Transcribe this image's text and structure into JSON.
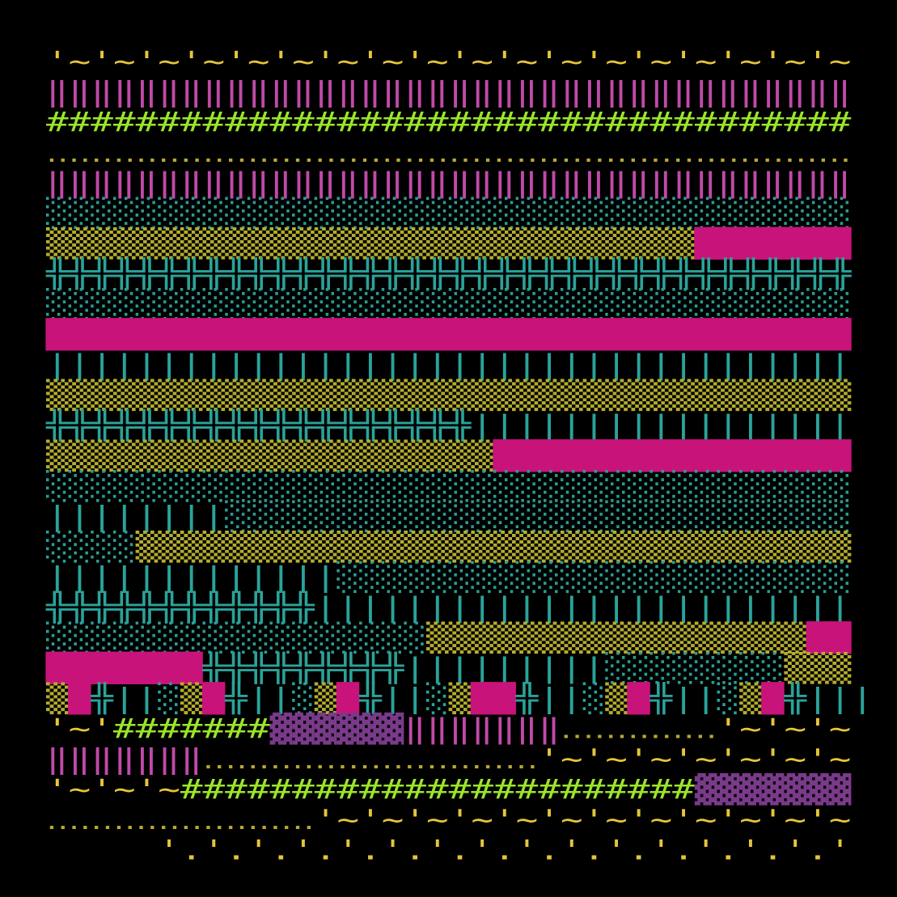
{
  "rows": [
    {
      "segments": [
        {
          "text": "'~'~'~'~'~'~'~'~'~'~'~'~'~'~'~'~'~'~",
          "color": "#e6c53a"
        }
      ]
    },
    {
      "segments": [
        {
          "text": "‖‖‖‖‖‖‖‖‖‖‖‖‖‖‖‖‖‖‖‖‖‖‖‖‖‖‖‖‖‖‖‖‖‖‖‖",
          "color": "#c04aa8"
        }
      ]
    },
    {
      "segments": [
        {
          "text": "####################################",
          "color": "#9be52a"
        }
      ]
    },
    {
      "segments": [
        {
          "text": "‥‥‥‥‥‥‥‥‥‥‥‥‥‥‥‥‥‥‥‥‥‥‥‥‥‥‥‥‥‥‥‥‥‥‥‥",
          "color": "#b8a830"
        }
      ]
    },
    {
      "segments": [
        {
          "text": "‖‖‖‖‖‖‖‖‖‖‖‖‖‖‖‖‖‖‖‖‖‖‖‖‖‖‖‖‖‖‖‖‖‖‖‖",
          "color": "#c04aa8"
        }
      ]
    },
    {
      "segments": [
        {
          "text": "░░░░░░░░░░░░░░░░░░░░░░░░░░░░░░░░░░░░",
          "color": "#2a9e94"
        }
      ]
    },
    {
      "segments": [
        {
          "text": "▒▒▒▒▒▒▒▒▒▒▒▒▒▒▒▒▒▒▒▒▒▒▒▒▒▒▒▒▒",
          "color": "#b5ad2e"
        },
        {
          "text": "███████",
          "color": "#c8137a"
        }
      ]
    },
    {
      "segments": [
        {
          "text": "╬╬╬╬╬╬╬╬╬╬╬╬╬╬╬╬╬╬╬╬╬╬╬╬╬╬╬╬╬╬╬╬╬╬╬╬",
          "color": "#2aa39a"
        }
      ]
    },
    {
      "segments": [
        {
          "text": "░░░░░░░░░░░░░░░░░░░░░░░░░░░░░░░░░░░░",
          "color": "#2a9e94"
        }
      ]
    },
    {
      "segments": [
        {
          "text": "████████████████████████████████████",
          "color": "#c8137a"
        }
      ]
    },
    {
      "segments": [
        {
          "text": "||||||||||||||||||||||||||||||||||||",
          "color": "#2aa39a"
        }
      ]
    },
    {
      "segments": [
        {
          "text": "▒▒▒▒▒▒▒▒▒▒▒▒▒▒▒▒▒▒▒▒▒▒▒▒▒▒▒▒▒▒▒▒▒▒▒▒",
          "color": "#b5ad2e"
        }
      ]
    },
    {
      "segments": [
        {
          "text": "╬╬╬╬╬╬╬╬╬╬╬╬╬╬╬╬╬╬╬",
          "color": "#2aa39a"
        },
        {
          "text": "|||||||||||||||||",
          "color": "#2aa39a"
        }
      ]
    },
    {
      "segments": [
        {
          "text": "▒▒▒▒▒▒▒▒▒▒▒▒▒▒▒▒▒▒▒▒",
          "color": "#b5ad2e"
        },
        {
          "text": "████████████████",
          "color": "#c8137a"
        }
      ]
    },
    {
      "segments": [
        {
          "text": "░░░░░░░░░░░░░░░░░░░░░░░░░░░░░░░░░░░░",
          "color": "#2a9e94"
        }
      ]
    },
    {
      "segments": [
        {
          "text": "||||||||",
          "color": "#2aa39a"
        },
        {
          "text": "░░░░░░░░░░░░░░░░░░░░░░░░░░░░",
          "color": "#2a9e94"
        }
      ]
    },
    {
      "segments": [
        {
          "text": "░░░░",
          "color": "#2a9e94"
        },
        {
          "text": "▒▒▒▒▒▒▒▒▒▒▒▒▒▒▒▒▒▒▒▒▒▒▒▒▒▒▒▒▒▒▒▒",
          "color": "#b5ad2e"
        }
      ]
    },
    {
      "segments": [
        {
          "text": "|||||||||||||",
          "color": "#2aa39a"
        },
        {
          "text": "░░░░░░░░░░░░░░░░░░░░░░░",
          "color": "#2a9e94"
        }
      ]
    },
    {
      "segments": [
        {
          "text": "╬╬╬╬╬╬╬╬╬╬╬╬",
          "color": "#2aa39a"
        },
        {
          "text": "||||||||||||||||||||||||",
          "color": "#2aa39a"
        }
      ]
    },
    {
      "segments": [
        {
          "text": "░░░░░░░░░░░░░░░░░",
          "color": "#2a9e94"
        },
        {
          "text": "▒▒▒▒▒▒▒▒▒▒▒▒▒▒▒▒▒",
          "color": "#b5ad2e"
        },
        {
          "text": "██",
          "color": "#c8137a"
        }
      ]
    },
    {
      "segments": [
        {
          "text": "███████",
          "color": "#c8137a"
        },
        {
          "text": "╬╬╬╬╬╬╬╬╬",
          "color": "#2aa39a"
        },
        {
          "text": "|||||||||",
          "color": "#2aa39a"
        },
        {
          "text": "░░░░░░░░",
          "color": "#2a9e94"
        },
        {
          "text": "▒▒▒",
          "color": "#b5ad2e"
        }
      ]
    },
    {
      "segments": [
        {
          "text": "▒",
          "color": "#b5ad2e"
        },
        {
          "text": "█",
          "color": "#c8137a"
        },
        {
          "text": "╬||░",
          "color": "#2aa39a"
        },
        {
          "text": "▒",
          "color": "#b5ad2e"
        },
        {
          "text": "█",
          "color": "#c8137a"
        },
        {
          "text": "╬||░",
          "color": "#2aa39a"
        },
        {
          "text": "▒",
          "color": "#b5ad2e"
        },
        {
          "text": "█",
          "color": "#c8137a"
        },
        {
          "text": "╬||░",
          "color": "#2aa39a"
        },
        {
          "text": "▒",
          "color": "#b5ad2e"
        },
        {
          "text": "██",
          "color": "#c8137a"
        },
        {
          "text": "╬||░",
          "color": "#2aa39a"
        },
        {
          "text": "▒",
          "color": "#b5ad2e"
        },
        {
          "text": "█",
          "color": "#c8137a"
        },
        {
          "text": "╬||░",
          "color": "#2aa39a"
        },
        {
          "text": "▒",
          "color": "#b5ad2e"
        },
        {
          "text": "█",
          "color": "#c8137a"
        },
        {
          "text": "╬|||",
          "color": "#2aa39a"
        }
      ]
    },
    {
      "segments": [
        {
          "text": "'~'",
          "color": "#e6c53a"
        },
        {
          "text": "#######",
          "color": "#9be52a"
        },
        {
          "text": "▓▓▓▓▓▓",
          "color": "#7a3a8a"
        },
        {
          "text": "‖‖‖‖‖‖‖",
          "color": "#c04aa8"
        },
        {
          "text": "‥‥‥‥‥‥‥",
          "color": "#b8a830"
        },
        {
          "text": "'~'~'~",
          "color": "#e6c53a"
        }
      ]
    },
    {
      "segments": [
        {
          "text": "‖‖‖‖‖‖‖",
          "color": "#c04aa8"
        },
        {
          "text": "‥‥‥‥‥‥‥‥‥‥‥‥‥‥‥",
          "color": "#b8a830"
        },
        {
          "text": "'~'~'~'~'~'~'~",
          "color": "#e6c53a"
        }
      ]
    },
    {
      "segments": [
        {
          "text": "'~'~'~",
          "color": "#e6c53a"
        },
        {
          "text": "#######################",
          "color": "#9be52a"
        },
        {
          "text": "▓▓▓▓▓▓▓",
          "color": "#7a3a8a"
        }
      ]
    },
    {
      "segments": [
        {
          "text": "‥‥‥‥‥‥‥‥‥‥‥‥",
          "color": "#b8a830"
        },
        {
          "text": "'~'~'~'~'~'~'~'~'~'~'~'~",
          "color": "#e6c53a"
        }
      ]
    },
    {
      "segments": [
        {
          "text": "     '.'.'.'.'.'.'.'.'.'.'.'.'.'.'.'",
          "color": "#e6c53a"
        }
      ]
    }
  ]
}
